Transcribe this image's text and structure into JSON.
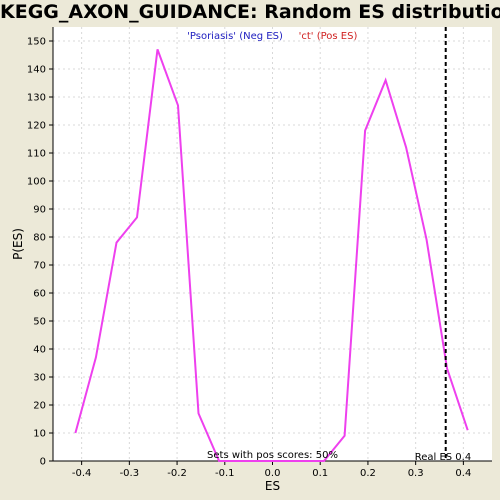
{
  "chart_data": {
    "type": "line",
    "title": "KEGG_AXON_GUIDANCE: Random ES distribution",
    "xlabel": "ES",
    "ylabel": "P(ES)",
    "xlim": [
      -0.46,
      0.46
    ],
    "ylim": [
      0,
      155
    ],
    "xticks": [
      -0.4,
      -0.3,
      -0.2,
      -0.1,
      0.0,
      0.1,
      0.2,
      0.3,
      0.4
    ],
    "xtick_labels": [
      "-0.4",
      "-0.3",
      "-0.2",
      "-0.1",
      "0.0",
      "0.1",
      "0.2",
      "0.3",
      "0.4"
    ],
    "yticks": [
      0,
      10,
      20,
      30,
      40,
      50,
      60,
      70,
      80,
      90,
      100,
      110,
      120,
      130,
      140,
      150
    ],
    "grid": true,
    "legend": {
      "placement": "top-center",
      "items": [
        {
          "label": "'Psoriasis' (Neg ES)",
          "color": "#2020c0"
        },
        {
          "label": "'ct' (Pos ES)",
          "color": "#d02020"
        }
      ]
    },
    "series": [
      {
        "color": "#ee40ee",
        "x": [
          -0.413,
          -0.37,
          -0.327,
          -0.284,
          -0.241,
          -0.198,
          -0.155,
          -0.112,
          0.108,
          0.151,
          0.194,
          0.237,
          0.28,
          0.323,
          0.366,
          0.409
        ],
        "y": [
          10,
          37,
          78,
          87,
          147,
          127,
          17,
          0,
          0,
          9,
          118,
          136,
          112,
          79,
          33,
          11
        ]
      }
    ],
    "real_es": {
      "value": 0.363,
      "label": "Real ES 0.4",
      "color": "#000000"
    },
    "annotation": "Sets with pos scores: 50%"
  }
}
